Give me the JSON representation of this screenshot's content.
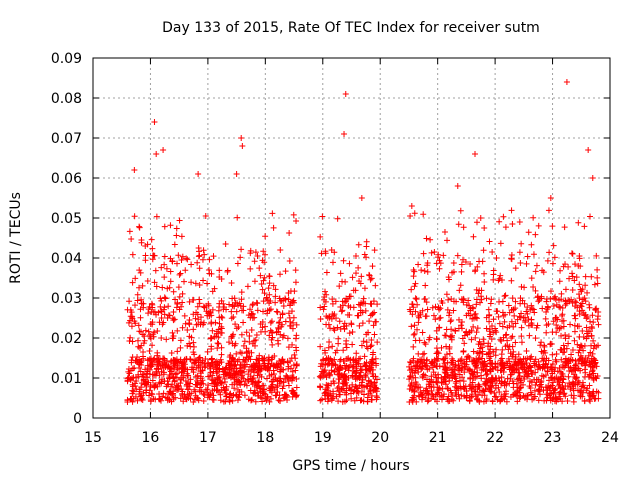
{
  "chart_data": {
    "type": "scatter",
    "title": "Day 133 of 2015, Rate Of TEC Index for receiver sutm",
    "xlabel": "GPS time / hours",
    "ylabel": "ROTI / TECUs",
    "xlim": [
      15,
      24
    ],
    "ylim": [
      0,
      0.09
    ],
    "xticks": [
      "15",
      "16",
      "17",
      "18",
      "19",
      "20",
      "21",
      "22",
      "23",
      "24"
    ],
    "yticks": [
      "0",
      "0.01",
      "0.02",
      "0.03",
      "0.04",
      "0.05",
      "0.06",
      "0.07",
      "0.08",
      "0.09"
    ],
    "grid": true,
    "marker": "+",
    "color": "#ff0000",
    "segments": [
      {
        "start": 15.6,
        "end": 18.55,
        "note": "dense ROTI cluster"
      },
      {
        "start": 18.95,
        "end": 19.95,
        "note": "dense ROTI cluster"
      },
      {
        "start": 20.5,
        "end": 23.8,
        "note": "dense ROTI cluster"
      }
    ],
    "notable_points": [
      {
        "x": 16.07,
        "y": 0.074
      },
      {
        "x": 16.1,
        "y": 0.066
      },
      {
        "x": 16.22,
        "y": 0.067
      },
      {
        "x": 15.72,
        "y": 0.062
      },
      {
        "x": 16.83,
        "y": 0.061
      },
      {
        "x": 17.5,
        "y": 0.061
      },
      {
        "x": 17.58,
        "y": 0.07
      },
      {
        "x": 17.6,
        "y": 0.068
      },
      {
        "x": 19.4,
        "y": 0.081
      },
      {
        "x": 19.37,
        "y": 0.071
      },
      {
        "x": 19.68,
        "y": 0.055
      },
      {
        "x": 20.55,
        "y": 0.053
      },
      {
        "x": 21.35,
        "y": 0.058
      },
      {
        "x": 21.65,
        "y": 0.066
      },
      {
        "x": 21.75,
        "y": 0.05
      },
      {
        "x": 22.43,
        "y": 0.049
      },
      {
        "x": 22.97,
        "y": 0.055
      },
      {
        "x": 23.25,
        "y": 0.084
      },
      {
        "x": 23.62,
        "y": 0.067
      },
      {
        "x": 23.7,
        "y": 0.06
      }
    ]
  }
}
